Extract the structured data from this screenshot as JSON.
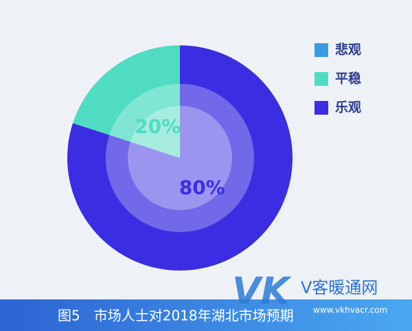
{
  "chart_data": {
    "type": "pie",
    "categories": [
      "悲观",
      "平稳",
      "乐观"
    ],
    "values": [
      0,
      20,
      80
    ],
    "value_labels": [
      null,
      "20%",
      "80%"
    ],
    "colors": [
      "#3a9be3",
      "#4fdcc2",
      "#3b2ee2"
    ],
    "legend": "top-right",
    "caption": "图5　市场人士对2018年湖北市场预期"
  },
  "watermark": {
    "logo": "VK",
    "text": "V客暖通网",
    "url": "www.vkhvacr.com"
  }
}
